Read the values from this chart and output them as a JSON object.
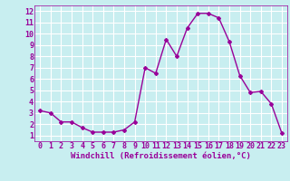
{
  "x": [
    0,
    1,
    2,
    3,
    4,
    5,
    6,
    7,
    8,
    9,
    10,
    11,
    12,
    13,
    14,
    15,
    16,
    17,
    18,
    19,
    20,
    21,
    22,
    23
  ],
  "y": [
    3.2,
    3.0,
    2.2,
    2.2,
    1.7,
    1.3,
    1.3,
    1.3,
    1.5,
    2.2,
    7.0,
    6.5,
    9.5,
    8.0,
    10.5,
    11.8,
    11.8,
    11.4,
    9.3,
    6.3,
    4.8,
    4.9,
    3.8,
    1.2
  ],
  "line_color": "#990099",
  "marker": "D",
  "marker_size": 2,
  "bg_color": "#c8eef0",
  "grid_color": "#ffffff",
  "xlabel": "Windchill (Refroidissement éolien,°C)",
  "xlim": [
    -0.5,
    23.5
  ],
  "ylim": [
    0.5,
    12.5
  ],
  "xticks": [
    0,
    1,
    2,
    3,
    4,
    5,
    6,
    7,
    8,
    9,
    10,
    11,
    12,
    13,
    14,
    15,
    16,
    17,
    18,
    19,
    20,
    21,
    22,
    23
  ],
  "yticks": [
    1,
    2,
    3,
    4,
    5,
    6,
    7,
    8,
    9,
    10,
    11,
    12
  ],
  "font_color": "#990099",
  "tick_fontsize": 6,
  "xlabel_fontsize": 6.5,
  "linewidth": 1.0
}
